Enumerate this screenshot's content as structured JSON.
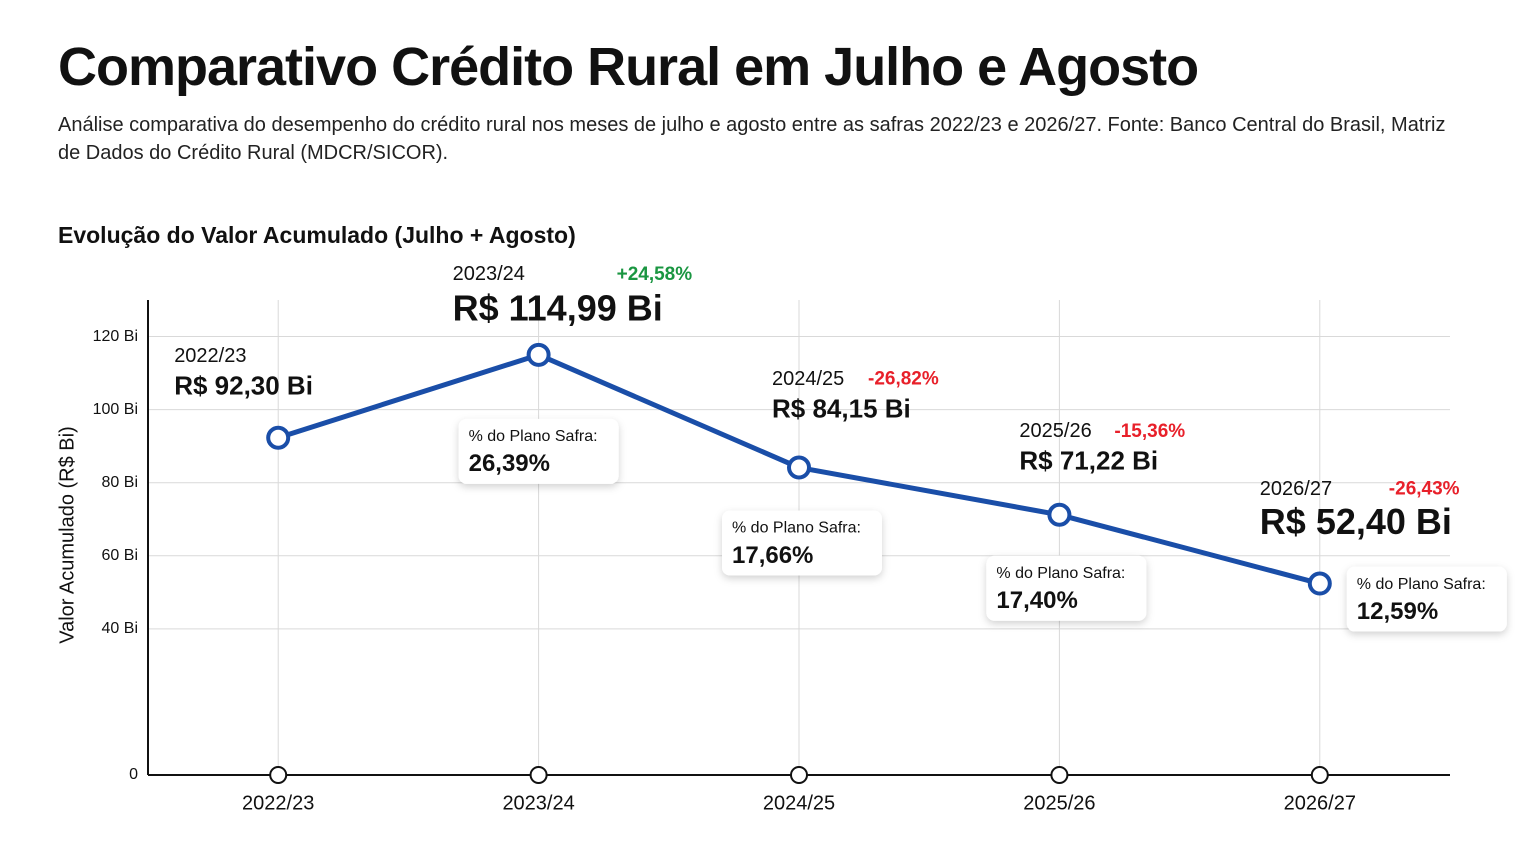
{
  "chart_data": {
    "type": "line",
    "title": "Comparativo Crédito Rural em Julho e Agosto",
    "subtitle": "Análise comparativa do desempenho do crédito rural nos meses de julho e agosto entre as safras 2022/23 e 2026/27. Fonte: Banco Central do Brasil, Matriz de Dados do Crédito Rural (MDCR/SICOR).",
    "chart_title": "Evolução do Valor Acumulado (Julho + Agosto)",
    "y_label": "Valor Acumulado (R$ Bi)",
    "categories": [
      "2022/23",
      "2023/24",
      "2024/25",
      "2025/26",
      "2026/27"
    ],
    "series": [
      {
        "name": "Valor Acumulado",
        "color": "#1a4ea8",
        "values": [
          92.3,
          114.99,
          84.15,
          71.22,
          52.4
        ],
        "value_labels": [
          "R$ 92,30 Bi",
          "R$ 114,99 Bi",
          "R$ 84,15 Bi",
          "R$ 71,22 Bi",
          "R$ 52,40 Bi"
        ]
      }
    ],
    "growth": [
      null,
      24.58,
      -26.82,
      -15.36,
      -26.43
    ],
    "growth_labels": [
      null,
      "+24,58%",
      "-26,82%",
      "-15,36%",
      "-26,43%"
    ],
    "plano_safra_title": "% do Plano Safra:",
    "plano_safra": [
      null,
      26.39,
      17.66,
      17.4,
      12.59
    ],
    "plano_safra_labels": [
      null,
      "26,39%",
      "17,66%",
      "17,40%",
      "12,59%"
    ],
    "ylim": [
      0,
      130
    ],
    "yticks": [
      {
        "value": 0,
        "label": "0"
      },
      {
        "value": 40,
        "label": "40 Bi"
      },
      {
        "value": 60,
        "label": "60 Bi"
      },
      {
        "value": 80,
        "label": "80 Bi"
      },
      {
        "value": 100,
        "label": "100 Bi"
      },
      {
        "value": 120,
        "label": "120 Bi"
      }
    ],
    "grid": true,
    "positive_color": "#1a9641",
    "negative_color": "#e8202a"
  }
}
